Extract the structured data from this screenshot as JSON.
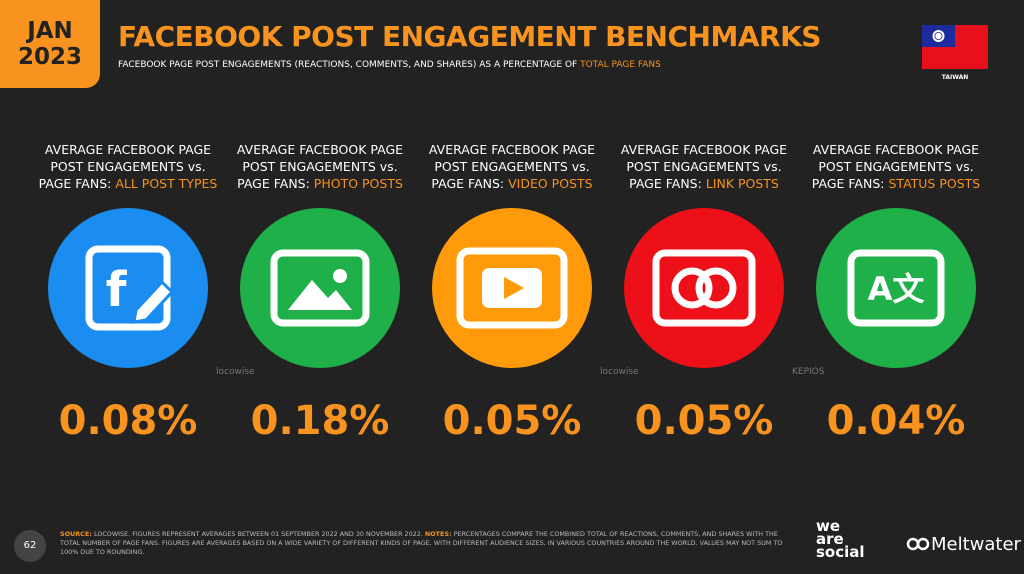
{
  "header": {
    "date_month": "JAN",
    "date_year": "2023",
    "title": "FACEBOOK POST ENGAGEMENT BENCHMARKS",
    "subtitle": "FACEBOOK PAGE POST ENGAGEMENTS (REACTIONS, COMMENTS, AND SHARES) AS A PERCENTAGE OF ",
    "subtitle_highlight": "TOTAL PAGE FANS",
    "country": "TAIWAN"
  },
  "cards": [
    {
      "label_lines": [
        "AVERAGE FACEBOOK PAGE",
        "POST ENGAGEMENTS vs.",
        "PAGE FANS: "
      ],
      "highlight": "ALL POST TYPES",
      "value": "0.08%",
      "color": "#1b8cf0",
      "icon_text": "f",
      "watermark": "locowise"
    },
    {
      "label_lines": [
        "AVERAGE FACEBOOK PAGE",
        "POST ENGAGEMENTS vs.",
        "PAGE FANS: "
      ],
      "highlight": "PHOTO POSTS",
      "value": "0.18%",
      "color": "#1fb04a"
    },
    {
      "label_lines": [
        "AVERAGE FACEBOOK PAGE",
        "POST ENGAGEMENTS vs.",
        "PAGE FANS: "
      ],
      "highlight": "VIDEO POSTS",
      "value": "0.05%",
      "color": "#ff9a0a",
      "watermark": "locowise"
    },
    {
      "label_lines": [
        "AVERAGE FACEBOOK PAGE",
        "POST ENGAGEMENTS vs.",
        "PAGE FANS: "
      ],
      "highlight": "LINK POSTS",
      "value": "0.05%",
      "color": "#ee1019",
      "watermark": "KEPIOS"
    },
    {
      "label_lines": [
        "AVERAGE FACEBOOK PAGE",
        "POST ENGAGEMENTS vs.",
        "PAGE FANS: "
      ],
      "highlight": "STATUS POSTS",
      "value": "0.04%",
      "color": "#1fb04a",
      "icon_text": "A文"
    }
  ],
  "footer": {
    "page_number": "62",
    "source_label": "SOURCE: ",
    "source_text": "LOCOWISE. FIGURES REPRESENT AVERAGES BETWEEN 01 SEPTEMBER 2022 AND 30 NOVEMBER 2022. ",
    "notes_label": "NOTES: ",
    "notes_text": "PERCENTAGES COMPARE THE COMBINED TOTAL OF REACTIONS, COMMENTS, AND SHARES WITH THE TOTAL NUMBER OF PAGE FANS. FIGURES ARE AVERAGES BASED ON A WIDE VARIETY OF DIFFERENT KINDS OF PAGE, WITH DIFFERENT AUDIENCE SIZES, IN VARIOUS COUNTRIES AROUND THE WORLD. VALUES MAY NOT SUM TO 100% DUE TO ROUNDING.",
    "brand_lines": [
      "we",
      "are",
      "social"
    ],
    "partner": "Meltwater"
  }
}
